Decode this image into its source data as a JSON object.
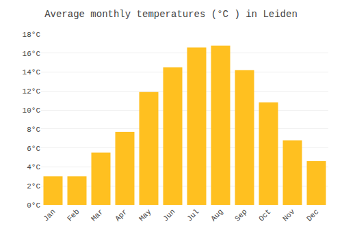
{
  "chart_data": {
    "type": "bar",
    "title": "Average monthly temperatures (°C ) in Leiden",
    "categories": [
      "Jan",
      "Feb",
      "Mar",
      "Apr",
      "May",
      "Jun",
      "Jul",
      "Aug",
      "Sep",
      "Oct",
      "Nov",
      "Dec"
    ],
    "values": [
      3.0,
      3.0,
      5.5,
      7.7,
      11.9,
      14.5,
      16.6,
      16.8,
      14.2,
      10.8,
      6.8,
      4.6
    ],
    "color": "#FFC020",
    "ylim": [
      0,
      18
    ],
    "yticks": [
      {
        "value": 0,
        "label": "0°C"
      },
      {
        "value": 2,
        "label": "2°C"
      },
      {
        "value": 4,
        "label": "4°C"
      },
      {
        "value": 6,
        "label": "6°C"
      },
      {
        "value": 8,
        "label": "8°C"
      },
      {
        "value": 10,
        "label": "10°C"
      },
      {
        "value": 12,
        "label": "12°C"
      },
      {
        "value": 14,
        "label": "14°C"
      },
      {
        "value": 16,
        "label": "16°C"
      },
      {
        "value": 18,
        "label": "18°C"
      }
    ],
    "grid": true
  }
}
